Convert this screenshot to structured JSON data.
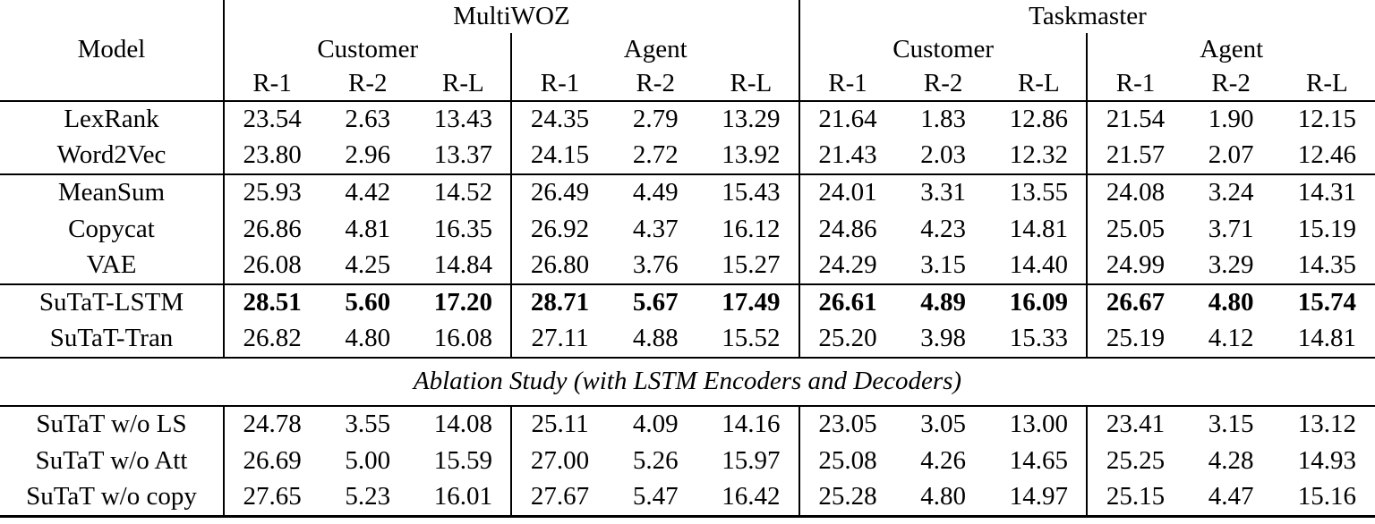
{
  "page": {
    "background_color": "#ffffff",
    "text_color": "#000000",
    "rule_color": "#000000"
  },
  "table": {
    "header": {
      "model_label": "Model",
      "dataset_groups": [
        {
          "label": "MultiWOZ"
        },
        {
          "label": "Taskmaster"
        }
      ],
      "speaker_groups": [
        {
          "label": "Customer"
        },
        {
          "label": "Agent"
        },
        {
          "label": "Customer"
        },
        {
          "label": "Agent"
        }
      ],
      "metric_labels": [
        "R-1",
        "R-2",
        "R-L",
        "R-1",
        "R-2",
        "R-L",
        "R-1",
        "R-2",
        "R-L",
        "R-1",
        "R-2",
        "R-L"
      ]
    },
    "section_divider_label": "Ablation Study (with LSTM Encoders and Decoders)",
    "groups": [
      {
        "name": "extractive-baselines",
        "rows": [
          {
            "model": "LexRank",
            "bold": false,
            "values": [
              "23.54",
              "2.63",
              "13.43",
              "24.35",
              "2.79",
              "13.29",
              "21.64",
              "1.83",
              "12.86",
              "21.54",
              "1.90",
              "12.15"
            ]
          },
          {
            "model": "Word2Vec",
            "bold": false,
            "values": [
              "23.80",
              "2.96",
              "13.37",
              "24.15",
              "2.72",
              "13.92",
              "21.43",
              "2.03",
              "12.32",
              "21.57",
              "2.07",
              "12.46"
            ]
          }
        ]
      },
      {
        "name": "unsupervised-baselines",
        "rows": [
          {
            "model": "MeanSum",
            "bold": false,
            "values": [
              "25.93",
              "4.42",
              "14.52",
              "26.49",
              "4.49",
              "15.43",
              "24.01",
              "3.31",
              "13.55",
              "24.08",
              "3.24",
              "14.31"
            ]
          },
          {
            "model": "Copycat",
            "bold": false,
            "values": [
              "26.86",
              "4.81",
              "16.35",
              "26.92",
              "4.37",
              "16.12",
              "24.86",
              "4.23",
              "14.81",
              "25.05",
              "3.71",
              "15.19"
            ]
          },
          {
            "model": "VAE",
            "bold": false,
            "values": [
              "26.08",
              "4.25",
              "14.84",
              "26.80",
              "3.76",
              "15.27",
              "24.29",
              "3.15",
              "14.40",
              "24.99",
              "3.29",
              "14.35"
            ]
          }
        ]
      },
      {
        "name": "sutat-models",
        "rows": [
          {
            "model": "SuTaT-LSTM",
            "bold": true,
            "values": [
              "28.51",
              "5.60",
              "17.20",
              "28.71",
              "5.67",
              "17.49",
              "26.61",
              "4.89",
              "16.09",
              "26.67",
              "4.80",
              "15.74"
            ]
          },
          {
            "model": "SuTaT-Tran",
            "bold": false,
            "values": [
              "26.82",
              "4.80",
              "16.08",
              "27.11",
              "4.88",
              "15.52",
              "25.20",
              "3.98",
              "15.33",
              "25.19",
              "4.12",
              "14.81"
            ]
          }
        ]
      },
      {
        "name": "ablation-study",
        "rows": [
          {
            "model": "SuTaT w/o LS",
            "bold": false,
            "values": [
              "24.78",
              "3.55",
              "14.08",
              "25.11",
              "4.09",
              "14.16",
              "23.05",
              "3.05",
              "13.00",
              "23.41",
              "3.15",
              "13.12"
            ]
          },
          {
            "model": "SuTaT w/o Att",
            "bold": false,
            "values": [
              "26.69",
              "5.00",
              "15.59",
              "27.00",
              "5.26",
              "15.97",
              "25.08",
              "4.26",
              "14.65",
              "25.25",
              "4.28",
              "14.93"
            ]
          },
          {
            "model": "SuTaT w/o copy",
            "bold": false,
            "values": [
              "27.65",
              "5.23",
              "16.01",
              "27.67",
              "5.47",
              "16.42",
              "25.28",
              "4.80",
              "14.97",
              "25.15",
              "4.47",
              "15.16"
            ]
          }
        ]
      }
    ]
  }
}
